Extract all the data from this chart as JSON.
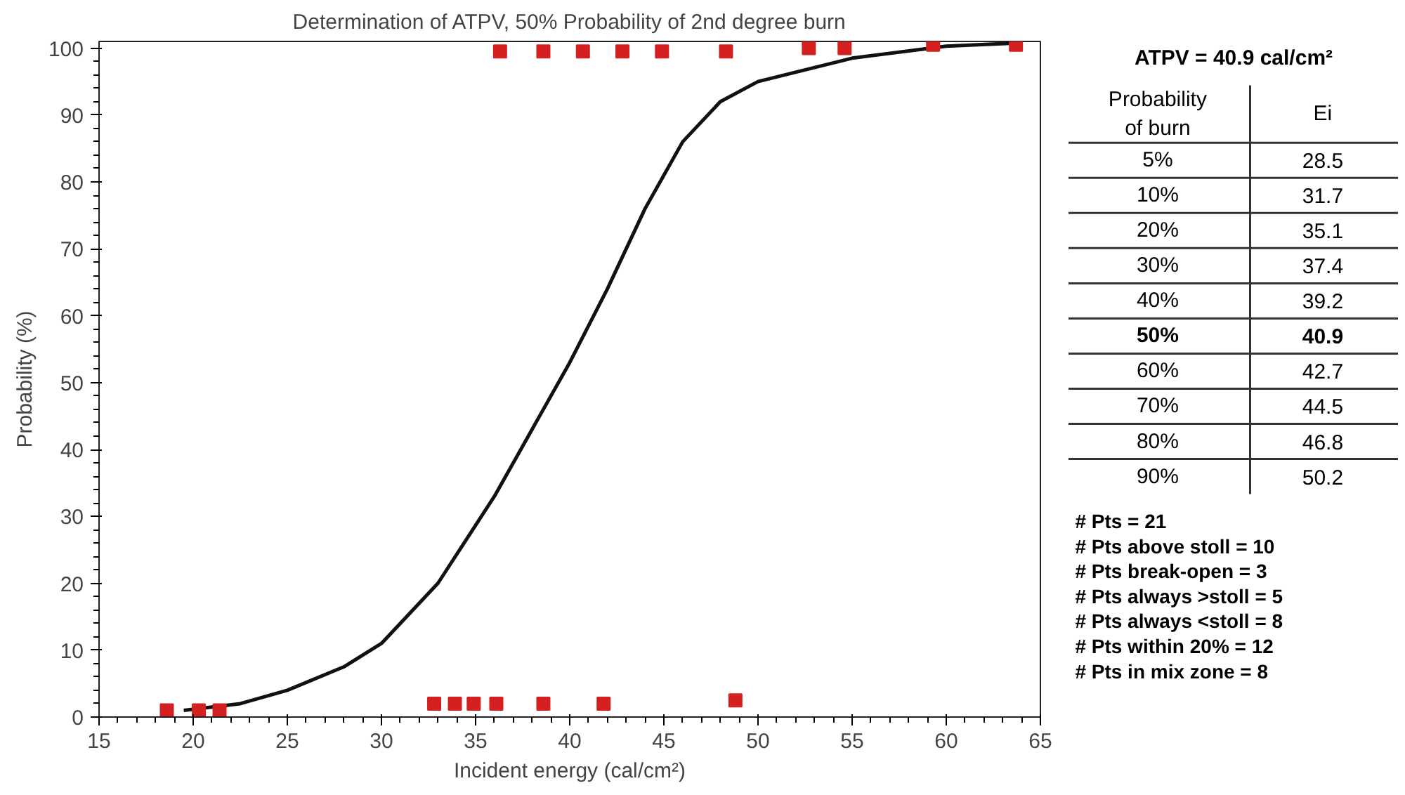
{
  "chart_data": {
    "type": "scatter",
    "title": "Determination of ATPV, 50% Probability of 2nd degree burn",
    "xlabel": "Incident energy (cal/cm²)",
    "ylabel": "Probability (%)",
    "xlim": [
      15,
      65
    ],
    "ylim": [
      0,
      101
    ],
    "xticks": [
      15,
      20,
      25,
      30,
      35,
      40,
      45,
      50,
      55,
      60,
      65
    ],
    "yticks": [
      0,
      10,
      20,
      30,
      40,
      50,
      60,
      70,
      80,
      90,
      100
    ],
    "grid": false,
    "series": [
      {
        "marker": "square",
        "color": "#d42020",
        "x": [
          18.6,
          20.3,
          21.4,
          32.8,
          33.9,
          34.9,
          36.1,
          38.6,
          41.8,
          48.8,
          36.3,
          38.6,
          40.7,
          42.8,
          44.9,
          48.3,
          52.7,
          54.6,
          59.3,
          63.7
        ],
        "values": [
          1,
          1,
          1,
          2,
          2,
          2,
          2,
          2,
          2,
          2.5,
          99.5,
          99.5,
          99.5,
          99.5,
          99.5,
          99.5,
          100,
          100,
          100.5,
          100.5
        ]
      },
      {
        "type": "line",
        "marker": "none",
        "color": "#111111",
        "x": [
          19.5,
          22.5,
          25,
          28,
          30,
          33,
          36,
          38,
          40,
          42,
          44,
          46,
          48,
          50,
          55,
          60,
          64
        ],
        "values": [
          1,
          2,
          4,
          7.5,
          11,
          20,
          33,
          43,
          53,
          64,
          76,
          86,
          92,
          95,
          98.5,
          100.3,
          100.8
        ]
      }
    ],
    "annotations": [
      "ATPV = 40.9 cal/cm²",
      "Probability\nof burn",
      "Ei",
      "5%",
      "28.5",
      "10%",
      "31.7",
      "20%",
      "35.1",
      "30%",
      "37.4",
      "40%",
      "39.2",
      "50%",
      "40.9",
      "60%",
      "42.7",
      "70%",
      "44.5",
      "80%",
      "46.8",
      "90%",
      "50.2",
      "# Pts = 21",
      "# Pts above stoll = 10",
      "# Pts break-open = 3",
      "# Pts always >stoll = 5",
      "# Pts always <stoll = 8",
      "# Pts within 20% = 12",
      "# Pts in mix zone = 8"
    ]
  }
}
